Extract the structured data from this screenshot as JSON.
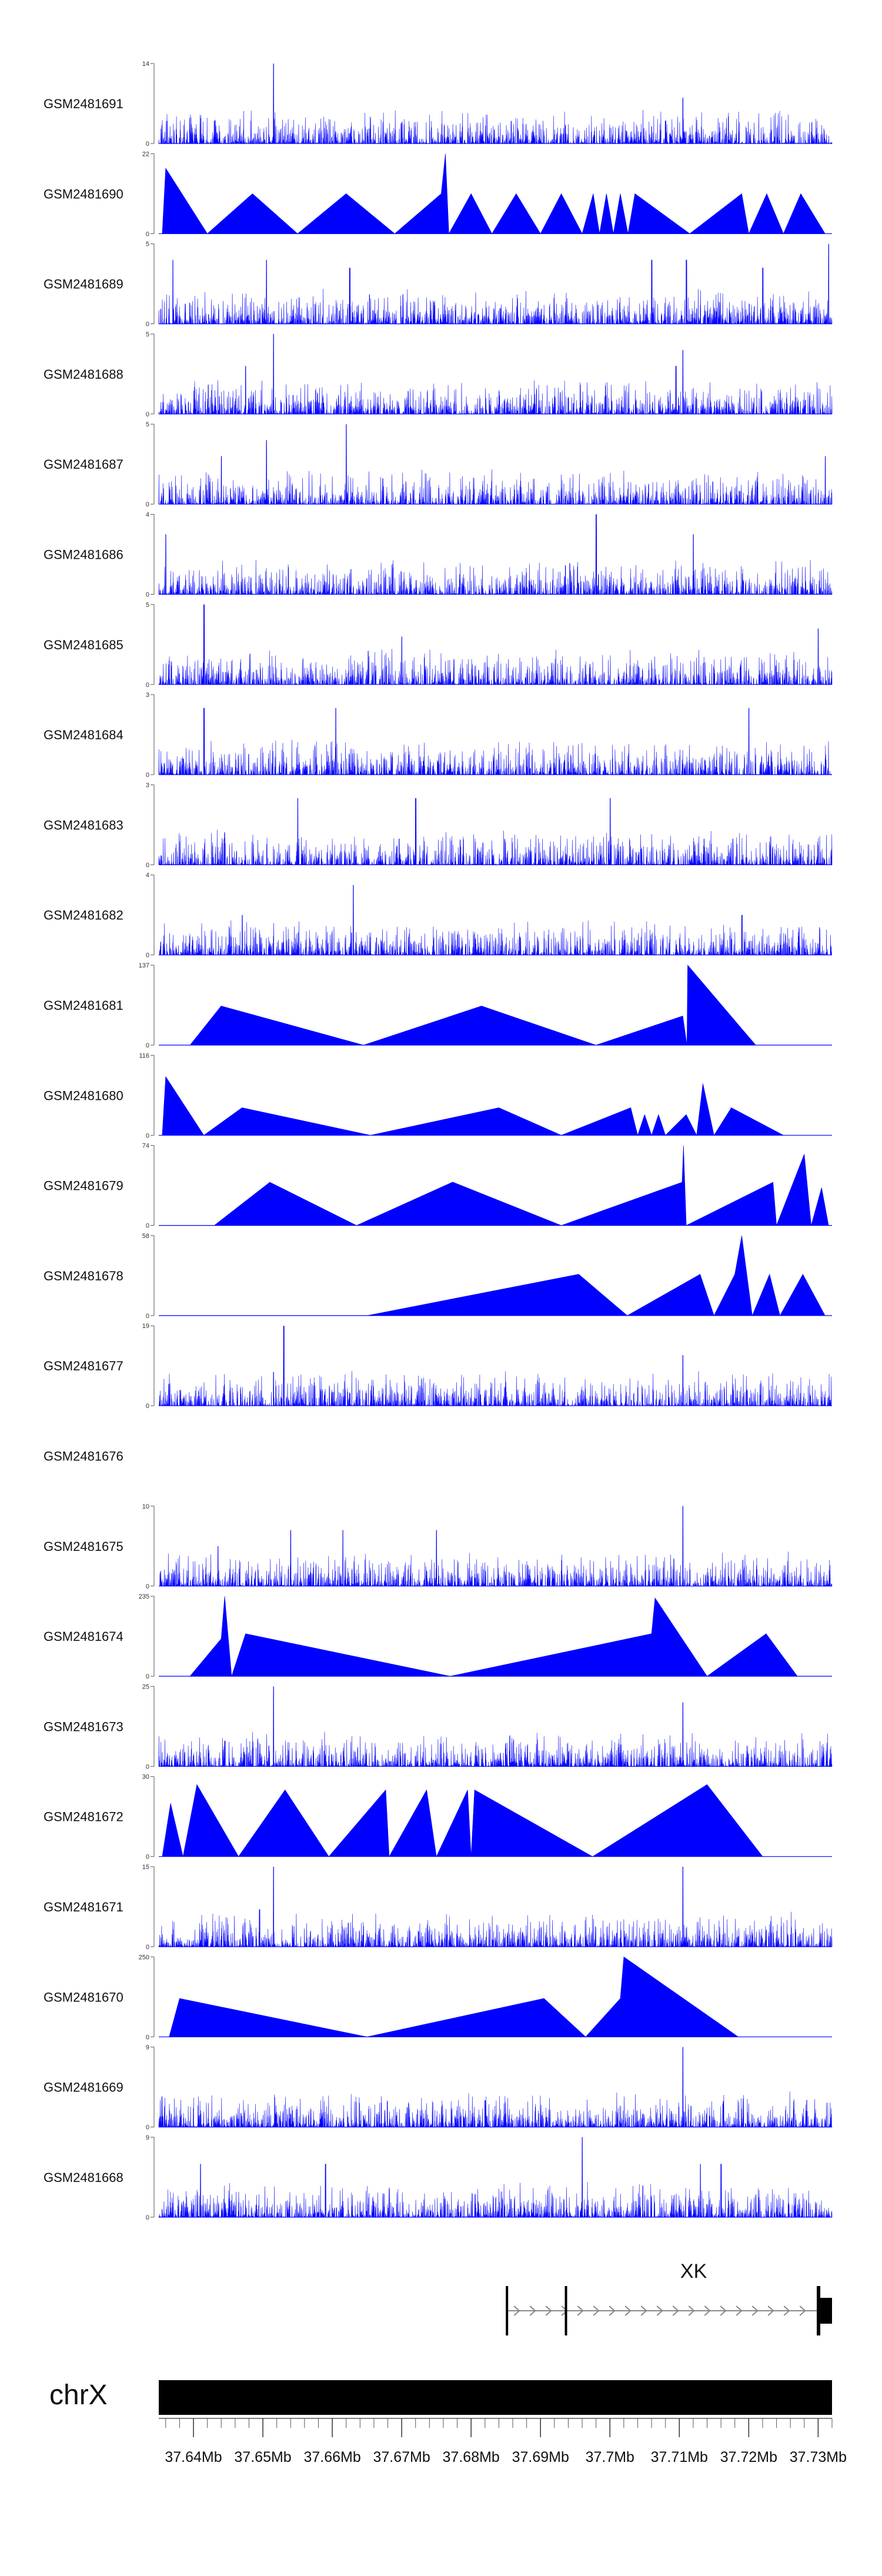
{
  "chart_data": {
    "type": "area",
    "title": "",
    "chromosome": "chrX",
    "x_range_bp": [
      37635000,
      37732000
    ],
    "x_ticks": [
      "37.64Mb",
      "37.65Mb",
      "37.66Mb",
      "37.67Mb",
      "37.68Mb",
      "37.69Mb",
      "37.7Mb",
      "37.71Mb",
      "37.72Mb",
      "37.73Mb"
    ],
    "x_tick_values": [
      37640000,
      37650000,
      37660000,
      37670000,
      37680000,
      37690000,
      37700000,
      37710000,
      37720000,
      37730000
    ],
    "gene": {
      "name": "XK",
      "start": 37685000,
      "end": 37732000,
      "strand": "+",
      "exons": [
        [
          37685000,
          37685300
        ],
        [
          37693500,
          37693800
        ],
        [
          37729800,
          37732000
        ]
      ]
    },
    "series": [
      {
        "name": "GSM2481691",
        "ymax": 14,
        "kind": "dense",
        "peaks": [
          [
            37651500,
            14
          ],
          [
            37710500,
            8
          ],
          [
            37643000,
            4
          ],
          [
            37708000,
            4
          ]
        ]
      },
      {
        "name": "GSM2481690",
        "ymax": 22,
        "kind": "sparse",
        "points": [
          [
            37635500,
            0
          ],
          [
            37636000,
            18
          ],
          [
            37642000,
            0
          ],
          [
            37648500,
            11
          ],
          [
            37655000,
            0
          ],
          [
            37662000,
            11
          ],
          [
            37669000,
            0
          ],
          [
            37675700,
            11
          ],
          [
            37676300,
            22
          ],
          [
            37676800,
            0
          ],
          [
            37680000,
            11
          ],
          [
            37683000,
            0
          ],
          [
            37686500,
            11
          ],
          [
            37690000,
            0
          ],
          [
            37693000,
            11
          ],
          [
            37696000,
            0
          ],
          [
            37697600,
            11
          ],
          [
            37698500,
            0
          ],
          [
            37699500,
            11
          ],
          [
            37700500,
            0
          ],
          [
            37701500,
            11
          ],
          [
            37702600,
            0
          ],
          [
            37703600,
            11
          ],
          [
            37711500,
            0
          ],
          [
            37719000,
            11
          ],
          [
            37720000,
            0
          ],
          [
            37722600,
            11
          ],
          [
            37725000,
            0
          ],
          [
            37727500,
            11
          ],
          [
            37731000,
            0
          ]
        ]
      },
      {
        "name": "GSM2481689",
        "ymax": 5,
        "kind": "dense",
        "peaks": [
          [
            37637000,
            4
          ],
          [
            37650500,
            4
          ],
          [
            37662500,
            3.5
          ],
          [
            37706000,
            4
          ],
          [
            37711000,
            4
          ],
          [
            37722000,
            3.5
          ],
          [
            37731500,
            5
          ]
        ]
      },
      {
        "name": "GSM2481688",
        "ymax": 5,
        "kind": "dense",
        "peaks": [
          [
            37651500,
            5
          ],
          [
            37647500,
            3
          ],
          [
            37710500,
            4
          ],
          [
            37709500,
            3
          ]
        ]
      },
      {
        "name": "GSM2481687",
        "ymax": 5,
        "kind": "dense",
        "peaks": [
          [
            37650500,
            4
          ],
          [
            37662000,
            5
          ],
          [
            37644000,
            3
          ],
          [
            37731000,
            3
          ]
        ]
      },
      {
        "name": "GSM2481686",
        "ymax": 4,
        "kind": "dense",
        "peaks": [
          [
            37698000,
            4
          ],
          [
            37636000,
            3
          ],
          [
            37712000,
            3
          ]
        ]
      },
      {
        "name": "GSM2481685",
        "ymax": 5,
        "kind": "dense",
        "peaks": [
          [
            37641500,
            5
          ],
          [
            37670000,
            3
          ],
          [
            37730000,
            3.5
          ]
        ]
      },
      {
        "name": "GSM2481684",
        "ymax": 3,
        "kind": "dense",
        "peaks": [
          [
            37641500,
            2.5
          ],
          [
            37660500,
            2.5
          ],
          [
            37720000,
            2.5
          ]
        ]
      },
      {
        "name": "GSM2481683",
        "ymax": 3,
        "kind": "dense",
        "peaks": [
          [
            37655000,
            2.5
          ],
          [
            37672000,
            2.5
          ],
          [
            37700000,
            2.5
          ]
        ]
      },
      {
        "name": "GSM2481682",
        "ymax": 4,
        "kind": "dense",
        "peaks": [
          [
            37663000,
            3.5
          ],
          [
            37647000,
            2
          ],
          [
            37719000,
            2
          ]
        ]
      },
      {
        "name": "GSM2481681",
        "ymax": 137,
        "kind": "sparse",
        "points": [
          [
            37639500,
            0
          ],
          [
            37644000,
            67
          ],
          [
            37664500,
            0
          ],
          [
            37681500,
            67
          ],
          [
            37698000,
            0
          ],
          [
            37710500,
            50
          ],
          [
            37711100,
            0
          ],
          [
            37711200,
            137
          ],
          [
            37721000,
            0
          ]
        ]
      },
      {
        "name": "GSM2481680",
        "ymax": 116,
        "kind": "sparse",
        "points": [
          [
            37635500,
            0
          ],
          [
            37636000,
            85
          ],
          [
            37641500,
            0
          ],
          [
            37647000,
            40
          ],
          [
            37665500,
            0
          ],
          [
            37684000,
            40
          ],
          [
            37693000,
            0
          ],
          [
            37703000,
            40
          ],
          [
            37704000,
            0
          ],
          [
            37705000,
            30
          ],
          [
            37706000,
            0
          ],
          [
            37707000,
            30
          ],
          [
            37708000,
            0
          ],
          [
            37711000,
            30
          ],
          [
            37712500,
            0
          ],
          [
            37713400,
            75
          ],
          [
            37715000,
            0
          ],
          [
            37717500,
            40
          ],
          [
            37725000,
            0
          ]
        ]
      },
      {
        "name": "GSM2481679",
        "ymax": 74,
        "kind": "sparse",
        "points": [
          [
            37643000,
            0
          ],
          [
            37651000,
            40
          ],
          [
            37663500,
            0
          ],
          [
            37677300,
            40
          ],
          [
            37677400,
            40
          ],
          [
            37693000,
            0
          ],
          [
            37710400,
            40
          ],
          [
            37710600,
            74
          ],
          [
            37711000,
            0
          ],
          [
            37723500,
            40
          ],
          [
            37724000,
            0
          ],
          [
            37728000,
            66
          ],
          [
            37729000,
            0
          ],
          [
            37730500,
            35
          ],
          [
            37731500,
            0
          ]
        ]
      },
      {
        "name": "GSM2481678",
        "ymax": 58,
        "kind": "sparse",
        "points": [
          [
            37665000,
            0
          ],
          [
            37695500,
            30
          ],
          [
            37702500,
            0
          ],
          [
            37713000,
            30
          ],
          [
            37715000,
            0
          ],
          [
            37718000,
            30
          ],
          [
            37719000,
            58
          ],
          [
            37720500,
            0
          ],
          [
            37723000,
            30
          ],
          [
            37724500,
            0
          ],
          [
            37727800,
            30
          ],
          [
            37731000,
            0
          ]
        ]
      },
      {
        "name": "GSM2481677",
        "ymax": 19,
        "kind": "dense",
        "peaks": [
          [
            37653000,
            19
          ],
          [
            37651500,
            8
          ],
          [
            37710500,
            12
          ],
          [
            37662500,
            3
          ]
        ]
      },
      {
        "name": "GSM2481676",
        "ymax": 0,
        "kind": "empty"
      },
      {
        "name": "GSM2481675",
        "ymax": 10,
        "kind": "dense",
        "peaks": [
          [
            37710500,
            10
          ],
          [
            37661500,
            7
          ],
          [
            37675000,
            7
          ],
          [
            37643500,
            5
          ],
          [
            37654000,
            7
          ]
        ]
      },
      {
        "name": "GSM2481674",
        "ymax": 235,
        "kind": "sparse",
        "points": [
          [
            37639500,
            0
          ],
          [
            37644000,
            110
          ],
          [
            37644500,
            235
          ],
          [
            37645500,
            0
          ],
          [
            37647500,
            125
          ],
          [
            37677000,
            0
          ],
          [
            37706000,
            125
          ],
          [
            37706500,
            230
          ],
          [
            37714000,
            0
          ],
          [
            37722500,
            125
          ],
          [
            37727000,
            0
          ]
        ]
      },
      {
        "name": "GSM2481673",
        "ymax": 25,
        "kind": "dense",
        "peaks": [
          [
            37651500,
            25
          ],
          [
            37710500,
            20
          ],
          [
            37644500,
            8
          ]
        ]
      },
      {
        "name": "GSM2481672",
        "ymax": 30,
        "kind": "sparse",
        "points": [
          [
            37635500,
            0
          ],
          [
            37636700,
            20
          ],
          [
            37638500,
            0
          ],
          [
            37640500,
            27
          ],
          [
            37646500,
            0
          ],
          [
            37653200,
            25
          ],
          [
            37659500,
            0
          ],
          [
            37667700,
            25
          ],
          [
            37668200,
            0
          ],
          [
            37673600,
            25
          ],
          [
            37675000,
            0
          ],
          [
            37679500,
            25
          ],
          [
            37680000,
            0
          ],
          [
            37680500,
            25
          ],
          [
            37697500,
            0
          ],
          [
            37714000,
            27
          ],
          [
            37722000,
            0
          ]
        ]
      },
      {
        "name": "GSM2481671",
        "ymax": 15,
        "kind": "dense",
        "peaks": [
          [
            37651500,
            15
          ],
          [
            37710500,
            15
          ],
          [
            37649500,
            7
          ]
        ]
      },
      {
        "name": "GSM2481670",
        "ymax": 250,
        "kind": "sparse",
        "points": [
          [
            37636500,
            0
          ],
          [
            37638000,
            120
          ],
          [
            37665000,
            0
          ],
          [
            37690500,
            120
          ],
          [
            37696500,
            0
          ],
          [
            37701500,
            120
          ],
          [
            37702000,
            250
          ],
          [
            37718500,
            0
          ]
        ]
      },
      {
        "name": "GSM2481669",
        "ymax": 9,
        "kind": "dense",
        "peaks": [
          [
            37710500,
            9
          ],
          [
            37682000,
            3
          ]
        ]
      },
      {
        "name": "GSM2481668",
        "ymax": 9,
        "kind": "dense",
        "peaks": [
          [
            37696000,
            9
          ],
          [
            37713000,
            6
          ],
          [
            37716000,
            6
          ],
          [
            37641000,
            6
          ],
          [
            37659000,
            6
          ]
        ]
      }
    ]
  }
}
